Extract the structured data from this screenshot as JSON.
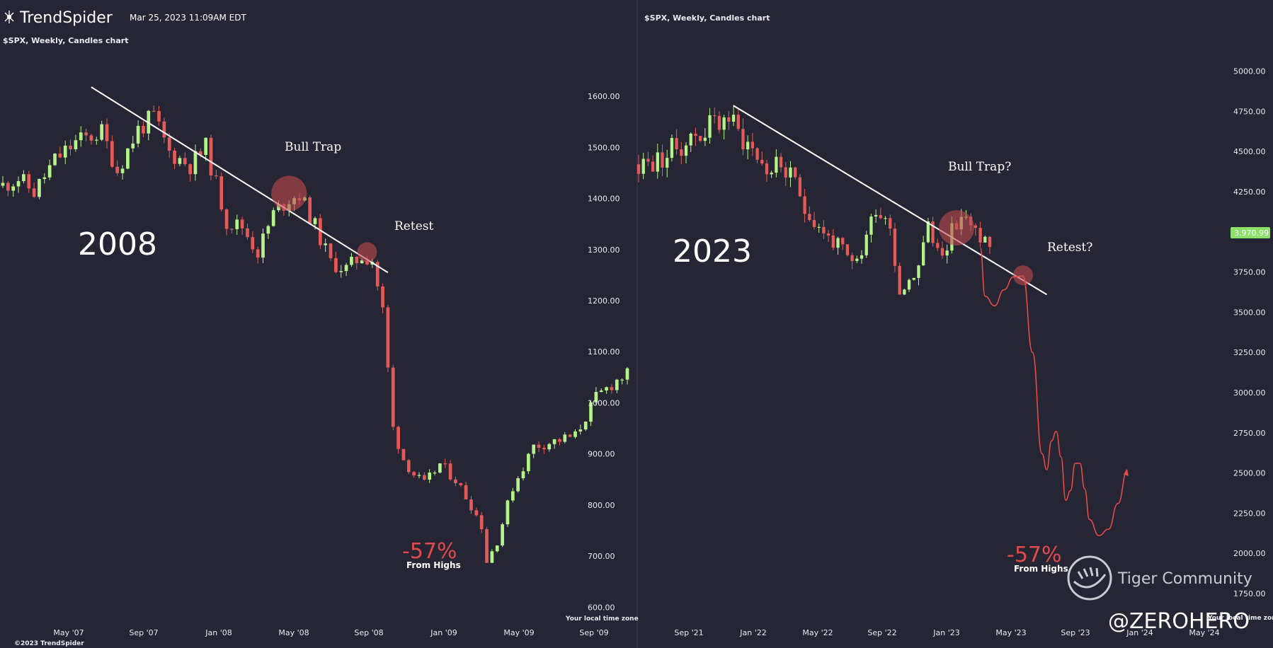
{
  "header": {
    "brand_name": "TrendSpider",
    "timestamp": "Mar 25, 2023 11:09AM EDT",
    "copyright": "©2023 TrendSpider"
  },
  "colors": {
    "background": "#262533",
    "bull": "#b6f28a",
    "bear": "#e35a58",
    "trendline": "#ffffff",
    "circle": "#c0494e",
    "projection": "#e04a48",
    "price_badge": "#8be06a"
  },
  "chart_data": [
    {
      "type": "candlestick",
      "title": "$SPX, Weekly, Candles chart",
      "period_label": "2008",
      "x_ticks": [
        "May '07",
        "Sep '07",
        "Jan '08",
        "May '08",
        "Sep '08",
        "Jan '09",
        "May '09",
        "Sep '09"
      ],
      "y_ticks": [
        "1600.00",
        "1500.00",
        "1400.00",
        "1300.00",
        "1200.00",
        "1100.00",
        "1000.00",
        "900.00",
        "800.00",
        "700.00",
        "600.00"
      ],
      "ylim": [
        570,
        1650
      ],
      "axis_note": "Your local time zone",
      "annotations": {
        "bull_trap": "Bull Trap",
        "retest": "Retest",
        "drawdown": "-57%",
        "drawdown_note": "From Highs"
      },
      "trendline": {
        "start": {
          "week": 17,
          "price": 1618
        },
        "end": {
          "week": 74,
          "price": 1255
        }
      },
      "circles": [
        {
          "week": 55,
          "price": 1410,
          "label": "bull trap"
        },
        {
          "week": 70,
          "price": 1295,
          "label": "retest"
        }
      ],
      "path": [
        [
          0,
          1425
        ],
        [
          3,
          1440
        ],
        [
          6,
          1412
        ],
        [
          10,
          1475
        ],
        [
          14,
          1510
        ],
        [
          19,
          1530
        ],
        [
          22,
          1455
        ],
        [
          26,
          1535
        ],
        [
          29,
          1560
        ],
        [
          32,
          1490
        ],
        [
          36,
          1465
        ],
        [
          39,
          1500
        ],
        [
          43,
          1355
        ],
        [
          46,
          1345
        ],
        [
          49,
          1295
        ],
        [
          52,
          1370
        ],
        [
          55,
          1400
        ],
        [
          57,
          1408
        ],
        [
          60,
          1345
        ],
        [
          63,
          1275
        ],
        [
          66,
          1262
        ],
        [
          69,
          1288
        ],
        [
          71,
          1280
        ],
        [
          73,
          1180
        ],
        [
          75,
          950
        ],
        [
          77,
          890
        ],
        [
          79,
          860
        ],
        [
          81,
          840
        ],
        [
          84,
          880
        ],
        [
          87,
          850
        ],
        [
          90,
          800
        ],
        [
          92,
          760
        ],
        [
          93,
          690
        ],
        [
          95,
          730
        ],
        [
          98,
          835
        ],
        [
          102,
          915
        ],
        [
          106,
          925
        ],
        [
          110,
          935
        ],
        [
          114,
          1010
        ],
        [
          118,
          1045
        ],
        [
          120,
          1055
        ]
      ]
    },
    {
      "type": "candlestick",
      "title": "$SPX, Weekly, Candles chart",
      "period_label": "2023",
      "x_ticks": [
        "Sep '21",
        "Jan '22",
        "May '22",
        "Sep '22",
        "Jan '23",
        "May '23",
        "Sep '23",
        "Jan '24",
        "May '24"
      ],
      "y_ticks": [
        "5000.00",
        "4750.00",
        "4500.00",
        "4250.00",
        "4000.00",
        "3750.00",
        "3500.00",
        "3250.00",
        "3000.00",
        "2750.00",
        "2500.00",
        "2250.00",
        "2000.00",
        "1750.00"
      ],
      "ylim": [
        1640,
        5130
      ],
      "last_price": "3,970.99",
      "axis_note": "Your local time zone",
      "annotations": {
        "bull_trap": "Bull Trap?",
        "retest": "Retest?",
        "drawdown": "-57%",
        "drawdown_note": "From Highs"
      },
      "trendline": {
        "start": {
          "week": 20,
          "price": 4785
        },
        "end": {
          "week": 86,
          "price": 3610
        }
      },
      "circles": [
        {
          "week": 67,
          "price": 4025,
          "label": "bull trap"
        },
        {
          "week": 81,
          "price": 3730,
          "label": "retest"
        }
      ],
      "path": [
        [
          0,
          4420
        ],
        [
          4,
          4440
        ],
        [
          8,
          4530
        ],
        [
          12,
          4600
        ],
        [
          16,
          4680
        ],
        [
          19,
          4720
        ],
        [
          21,
          4615
        ],
        [
          24,
          4520
        ],
        [
          27,
          4385
        ],
        [
          30,
          4420
        ],
        [
          33,
          4275
        ],
        [
          36,
          4120
        ],
        [
          39,
          4000
        ],
        [
          42,
          3905
        ],
        [
          45,
          3770
        ],
        [
          47,
          3880
        ],
        [
          50,
          4170
        ],
        [
          53,
          4050
        ],
        [
          55,
          3640
        ],
        [
          58,
          3740
        ],
        [
          61,
          4020
        ],
        [
          63,
          3880
        ],
        [
          66,
          3990
        ],
        [
          68,
          4110
        ],
        [
          70,
          4010
        ],
        [
          72,
          3970
        ],
        [
          74,
          3930
        ]
      ],
      "projection": [
        [
          72,
          3900
        ],
        [
          73,
          3600
        ],
        [
          75,
          3540
        ],
        [
          77,
          3640
        ],
        [
          79,
          3720
        ],
        [
          81,
          3725
        ],
        [
          83,
          3250
        ],
        [
          85,
          2620
        ],
        [
          86,
          2520
        ],
        [
          87,
          2700
        ],
        [
          88,
          2760
        ],
        [
          89,
          2600
        ],
        [
          90,
          2330
        ],
        [
          91,
          2390
        ],
        [
          92,
          2560
        ],
        [
          93,
          2560
        ],
        [
          94,
          2400
        ],
        [
          95,
          2210
        ],
        [
          97,
          2110
        ],
        [
          99,
          2150
        ],
        [
          101,
          2310
        ],
        [
          103,
          2520
        ]
      ]
    }
  ],
  "watermarks": {
    "community": "Tiger Community",
    "handle": "@ZEROHERO"
  }
}
